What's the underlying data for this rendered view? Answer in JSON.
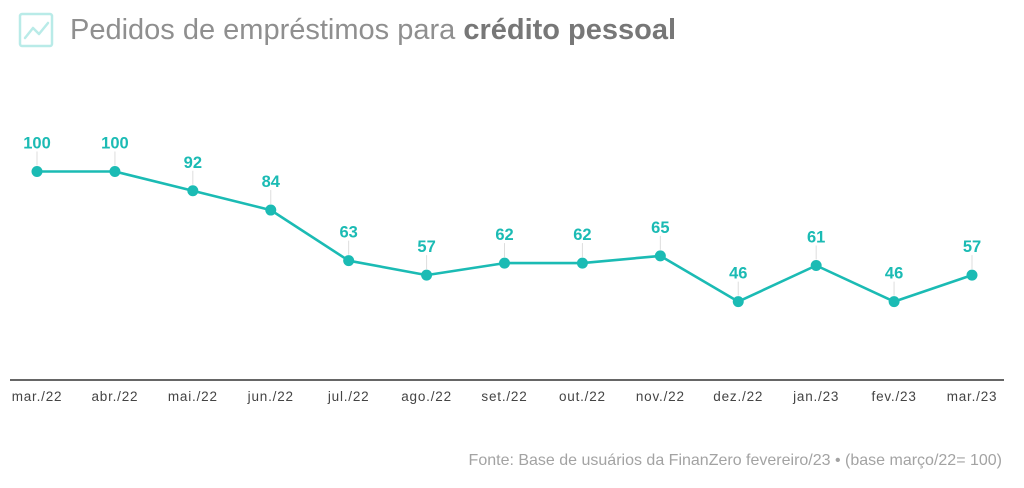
{
  "header": {
    "icon": "line-chart-icon",
    "title_prefix": "Pedidos de empréstimos para ",
    "title_bold": "crédito pessoal"
  },
  "chart_data": {
    "type": "line",
    "title": "Pedidos de empréstimos para crédito pessoal",
    "categories": [
      "mar./22",
      "abr./22",
      "mai./22",
      "jun./22",
      "jul./22",
      "ago./22",
      "set./22",
      "out./22",
      "nov./22",
      "dez./22",
      "jan./23",
      "fev./23",
      "mar./23"
    ],
    "series": [
      {
        "values": [
          100,
          100,
          92,
          84,
          63,
          57,
          62,
          62,
          65,
          46,
          61,
          46,
          57
        ]
      }
    ],
    "data_labels": true,
    "grid": false,
    "legend": "none",
    "color": "#1bbbb4",
    "axis_color": "#333333"
  },
  "footer": {
    "source": "Fonte: Base de usuários da FinanZero fevereiro/23 • (base março/22= 100)"
  }
}
